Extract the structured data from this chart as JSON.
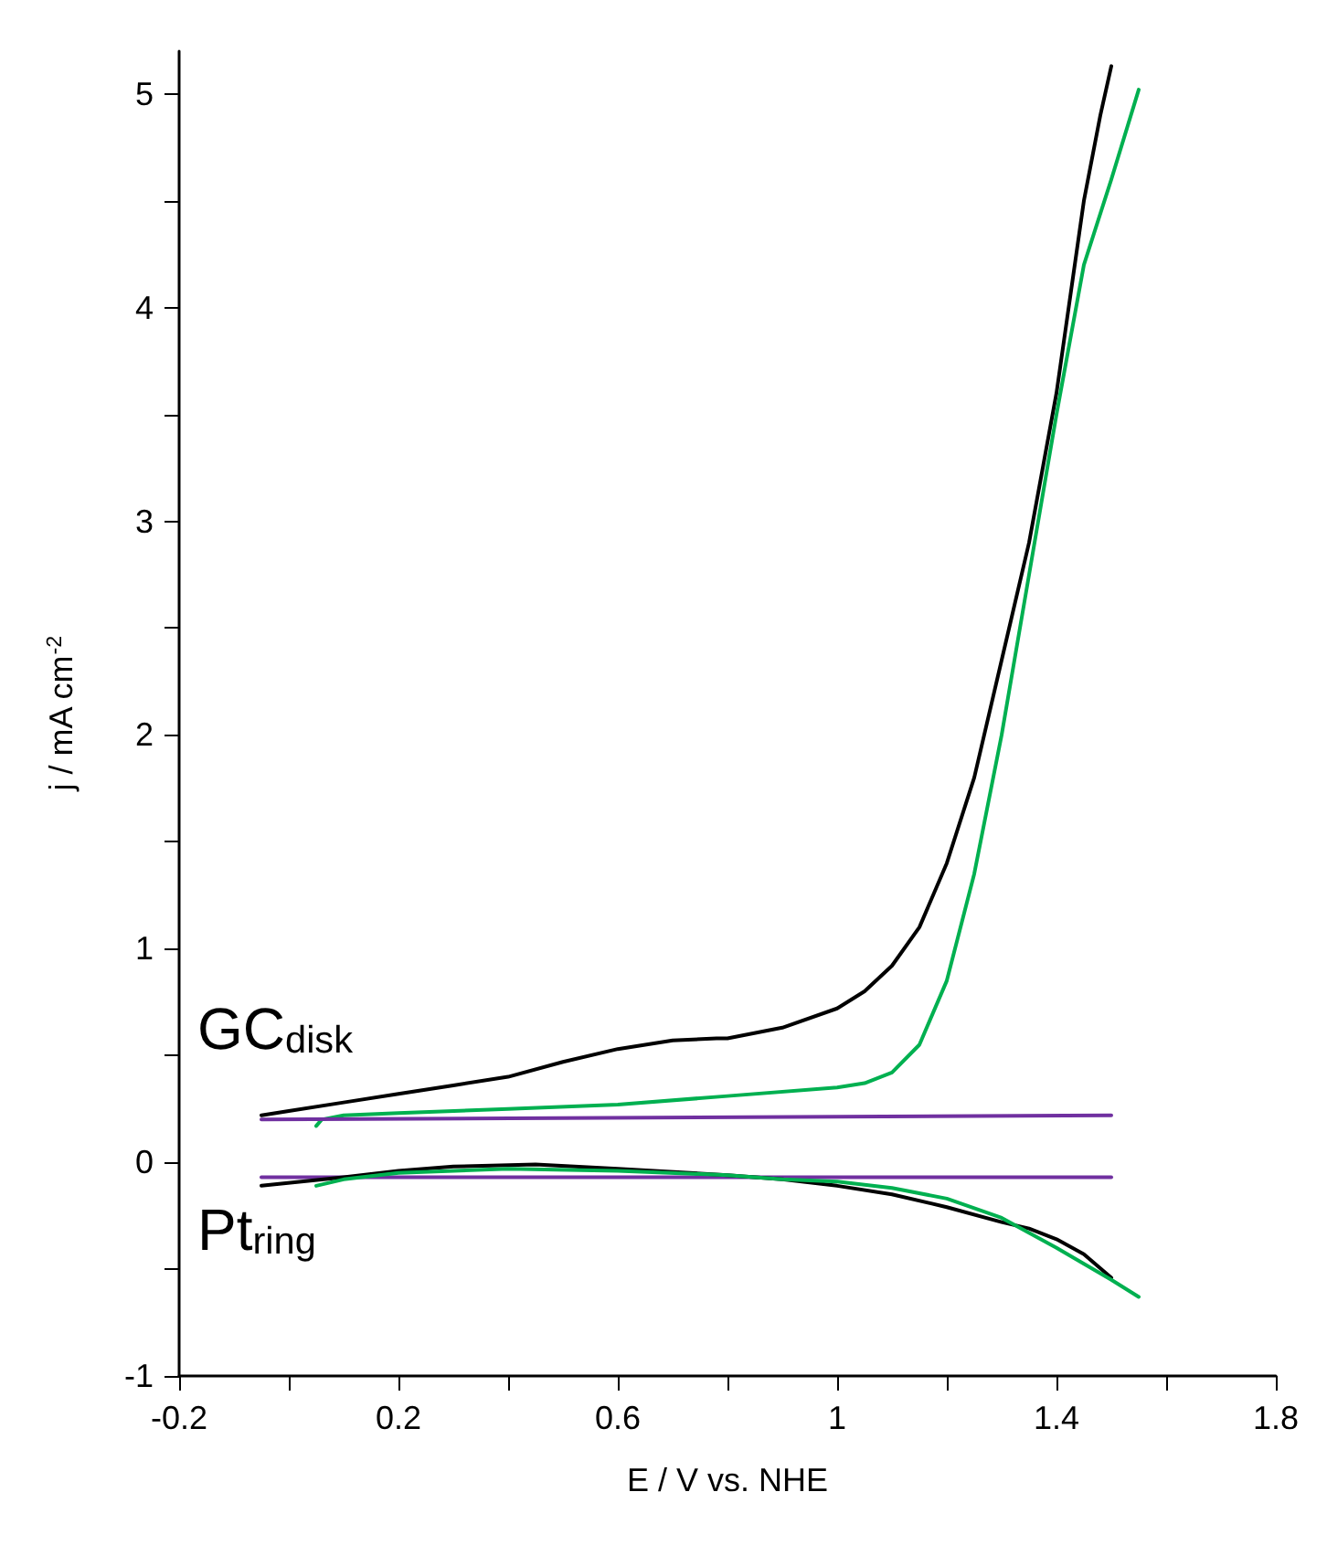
{
  "chart_data": {
    "type": "line",
    "xlabel": "E / V vs. NHE",
    "ylabel": "j / mA cm$^{-2}$",
    "xlim": [
      -0.2,
      1.8
    ],
    "ylim": [
      -1,
      5.2
    ],
    "xticks": [
      -0.2,
      {
        "value": 0,
        "label": null
      },
      0.2,
      {
        "value": 0.4,
        "label": null
      },
      0.6,
      {
        "value": 0.8,
        "label": null
      },
      1,
      {
        "value": 1.2,
        "label": null
      },
      1.4,
      {
        "value": 1.6,
        "label": null
      },
      1.8
    ],
    "yticks": [
      -1,
      {
        "value": -0.5,
        "label": null
      },
      0,
      {
        "value": 0.5,
        "label": null
      },
      1,
      {
        "value": 1.5,
        "label": null
      },
      2,
      {
        "value": 2.5,
        "label": null
      },
      3,
      {
        "value": 3.5,
        "label": null
      },
      4,
      {
        "value": 4.5,
        "label": null
      },
      5
    ],
    "grid": false,
    "marker": "none",
    "line_style": "solid",
    "annotations": [
      "GC$_{disk}$",
      "Pt$_{ring}$"
    ],
    "series": [
      {
        "color": "#000000",
        "x": [
          -0.05,
          0,
          0.1,
          0.2,
          0.3,
          0.4,
          0.5,
          0.6,
          0.7,
          0.78,
          0.8,
          0.9,
          1,
          1.05,
          1.1,
          1.15,
          1.2,
          1.25,
          1.3,
          1.35,
          1.4,
          1.45,
          1.48,
          1.5
        ],
        "values": [
          0.22,
          0.24,
          0.28,
          0.32,
          0.36,
          0.4,
          0.47,
          0.53,
          0.57,
          0.58,
          0.58,
          0.63,
          0.72,
          0.8,
          0.92,
          1.1,
          1.4,
          1.8,
          2.35,
          2.9,
          3.6,
          4.5,
          4.9,
          5.13
        ]
      },
      {
        "color": "#00b050",
        "x": [
          0.05,
          0.06,
          0.1,
          0.2,
          0.4,
          0.6,
          0.8,
          1,
          1.05,
          1.1,
          1.15,
          1.2,
          1.25,
          1.3,
          1.35,
          1.4,
          1.45,
          1.5,
          1.55
        ],
        "values": [
          0.17,
          0.2,
          0.22,
          0.23,
          0.25,
          0.27,
          0.31,
          0.35,
          0.37,
          0.42,
          0.55,
          0.85,
          1.35,
          2,
          2.75,
          3.5,
          4.2,
          4.6,
          5.02
        ]
      },
      {
        "color": "#7030a0",
        "x": [
          -0.05,
          1.5
        ],
        "values": [
          0.2,
          0.22
        ]
      },
      {
        "color": "#7030a0",
        "x": [
          -0.05,
          1.5
        ],
        "values": [
          -0.07,
          -0.07
        ]
      },
      {
        "color": "#000000",
        "x": [
          -0.05,
          0.1,
          0.2,
          0.3,
          0.45,
          0.6,
          0.8,
          0.9,
          1,
          1.1,
          1.2,
          1.3,
          1.35,
          1.4,
          1.45,
          1.5
        ],
        "values": [
          -0.11,
          -0.07,
          -0.04,
          -0.02,
          -0.01,
          -0.03,
          -0.06,
          -0.08,
          -0.11,
          -0.15,
          -0.21,
          -0.28,
          -0.31,
          -0.36,
          -0.43,
          -0.54
        ]
      },
      {
        "color": "#00b050",
        "x": [
          0.05,
          0.1,
          0.2,
          0.4,
          0.6,
          0.8,
          0.9,
          1,
          1.1,
          1.2,
          1.3,
          1.4,
          1.5,
          1.55
        ],
        "values": [
          -0.11,
          -0.08,
          -0.05,
          -0.03,
          -0.04,
          -0.06,
          -0.08,
          -0.09,
          -0.12,
          -0.17,
          -0.26,
          -0.4,
          -0.55,
          -0.63
        ]
      }
    ]
  }
}
